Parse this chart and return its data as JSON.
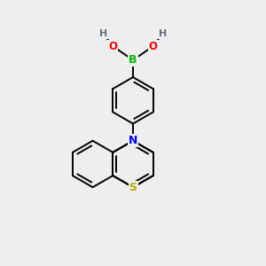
{
  "background_color": "#eeeeee",
  "atom_colors": {
    "B": "#00bb00",
    "O": "#ff0000",
    "N": "#0000ff",
    "S": "#bbaa00",
    "C": "#000000",
    "H": "#607080"
  },
  "bond_color": "#000000",
  "bond_lw": 1.4,
  "figsize": [
    3.0,
    3.0
  ],
  "dpi": 100,
  "xlim": [
    -3.5,
    3.5
  ],
  "ylim": [
    -4.5,
    4.0
  ]
}
